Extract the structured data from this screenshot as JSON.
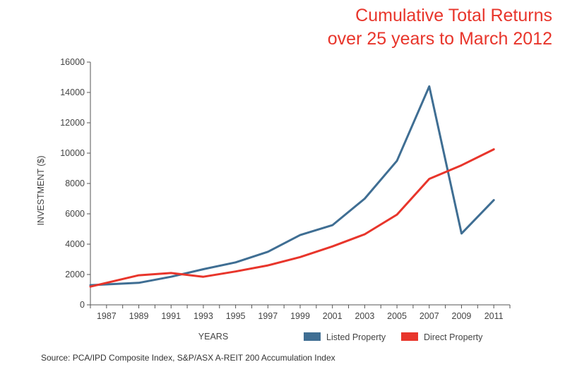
{
  "chart_data": {
    "type": "line",
    "title_line1": "Cumulative Total Returns",
    "title_line2": "over 25 years to March 2012",
    "xlabel": "YEARS",
    "ylabel": "INVESTMENT ($)",
    "x_tick_labels": [
      "1987",
      "1989",
      "1991",
      "1993",
      "1995",
      "1997",
      "1999",
      "2001",
      "2003",
      "2005",
      "2007",
      "2009",
      "2011"
    ],
    "y_tick_labels": [
      "0",
      "2000",
      "4000",
      "6000",
      "8000",
      "10000",
      "12000",
      "14000",
      "16000"
    ],
    "ylim": [
      0,
      16000
    ],
    "xlim": [
      1986,
      2012
    ],
    "grid": false,
    "legend_position": "bottom-right",
    "series": [
      {
        "name": "Listed Property",
        "color": "#3f6e93",
        "points": [
          {
            "x": 1986,
            "y": 1300
          },
          {
            "x": 1988,
            "y": 1400
          },
          {
            "x": 1989,
            "y": 1450
          },
          {
            "x": 1991,
            "y": 1850
          },
          {
            "x": 1993,
            "y": 2350
          },
          {
            "x": 1995,
            "y": 2800
          },
          {
            "x": 1997,
            "y": 3500
          },
          {
            "x": 1999,
            "y": 4600
          },
          {
            "x": 2001,
            "y": 5250
          },
          {
            "x": 2003,
            "y": 7000
          },
          {
            "x": 2005,
            "y": 9500
          },
          {
            "x": 2007,
            "y": 14400
          },
          {
            "x": 2009,
            "y": 4700
          },
          {
            "x": 2011,
            "y": 6900
          }
        ]
      },
      {
        "name": "Direct Property",
        "color": "#e8352b",
        "points": [
          {
            "x": 1986,
            "y": 1200
          },
          {
            "x": 1987,
            "y": 1450
          },
          {
            "x": 1989,
            "y": 1950
          },
          {
            "x": 1991,
            "y": 2100
          },
          {
            "x": 1993,
            "y": 1850
          },
          {
            "x": 1995,
            "y": 2200
          },
          {
            "x": 1997,
            "y": 2600
          },
          {
            "x": 1999,
            "y": 3150
          },
          {
            "x": 2001,
            "y": 3850
          },
          {
            "x": 2003,
            "y": 4650
          },
          {
            "x": 2005,
            "y": 5950
          },
          {
            "x": 2007,
            "y": 8300
          },
          {
            "x": 2009,
            "y": 9200
          },
          {
            "x": 2011,
            "y": 10250
          }
        ]
      }
    ],
    "source": "Source: PCA/IPD Composite Index, S&P/ASX A-REIT 200 Accumulation Index"
  }
}
